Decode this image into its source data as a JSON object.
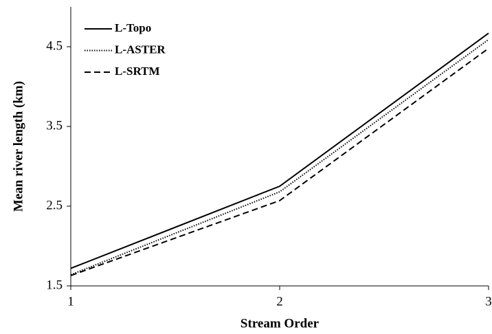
{
  "chart_data": {
    "type": "line",
    "xlabel": "Stream Order",
    "ylabel": "Mean river length (km)",
    "x": [
      1,
      2,
      3
    ],
    "series": [
      {
        "name": "L-Topo",
        "color": "#000000",
        "dash": "solid",
        "values": [
          1.72,
          2.75,
          4.67
        ]
      },
      {
        "name": "L-ASTER",
        "color": "#000000",
        "dash": "dotted",
        "values": [
          1.64,
          2.68,
          4.59
        ]
      },
      {
        "name": "L-SRTM",
        "color": "#000000",
        "dash": "dashed",
        "values": [
          1.63,
          2.57,
          4.48
        ]
      }
    ],
    "xlim": [
      1,
      3
    ],
    "xticks": [
      1,
      2,
      3
    ],
    "ylim": [
      1.5,
      5.0
    ],
    "yticks": [
      1.5,
      2.5,
      3.5,
      4.5
    ],
    "grid": false,
    "legend": "upper left"
  }
}
